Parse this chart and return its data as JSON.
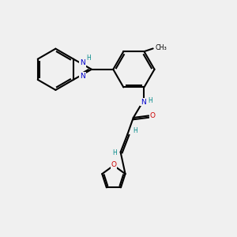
{
  "bg_color": "#f0f0f0",
  "bond_color": "#000000",
  "N_color": "#0000cc",
  "O_color": "#cc0000",
  "H_color": "#008888",
  "figsize": [
    3.0,
    3.0
  ],
  "dpi": 100,
  "lw": 1.5,
  "fs": 7.0,
  "xlim": [
    0,
    12
  ],
  "ylim": [
    0,
    12
  ]
}
